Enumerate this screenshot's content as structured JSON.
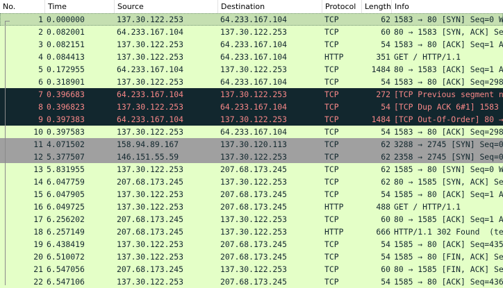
{
  "columns": {
    "no": "No.",
    "time": "Time",
    "source": "Source",
    "destination": "Destination",
    "protocol": "Protocol",
    "length": "Length",
    "info": "Info"
  },
  "colors": {
    "tcp_bg": "#e7e6ff",
    "http_bg": "#e4ffc7",
    "selected_bg": "#c5dfb1",
    "bad_bg": "#12272e",
    "bad_fg": "#f78787",
    "syn_bg": "#a0a0a0",
    "default_fg": "#12272e"
  },
  "packets": [
    {
      "no": "1",
      "time": "0.000000",
      "source": "137.30.122.253",
      "destination": "64.233.167.104",
      "protocol": "TCP",
      "length": "62",
      "info": "1583 → 80 [SYN] Seq=0 W",
      "style": "selected"
    },
    {
      "no": "2",
      "time": "0.082001",
      "source": "64.233.167.104",
      "destination": "137.30.122.253",
      "protocol": "TCP",
      "length": "60",
      "info": "80 → 1583 [SYN, ACK] Se",
      "style": "http"
    },
    {
      "no": "3",
      "time": "0.082151",
      "source": "137.30.122.253",
      "destination": "64.233.167.104",
      "protocol": "TCP",
      "length": "54",
      "info": "1583 → 80 [ACK] Seq=1 A",
      "style": "http"
    },
    {
      "no": "4",
      "time": "0.084413",
      "source": "137.30.122.253",
      "destination": "64.233.167.104",
      "protocol": "HTTP",
      "length": "351",
      "info": "GET / HTTP/1.1",
      "style": "http"
    },
    {
      "no": "5",
      "time": "0.172955",
      "source": "64.233.167.104",
      "destination": "137.30.122.253",
      "protocol": "TCP",
      "length": "1484",
      "info": "80 → 1583 [ACK] Seq=1 A",
      "style": "http"
    },
    {
      "no": "6",
      "time": "0.318901",
      "source": "137.30.122.253",
      "destination": "64.233.167.104",
      "protocol": "TCP",
      "length": "54",
      "info": "1583 → 80 [ACK] Seq=298",
      "style": "http"
    },
    {
      "no": "7",
      "time": "0.396683",
      "source": "64.233.167.104",
      "destination": "137.30.122.253",
      "protocol": "TCP",
      "length": "272",
      "info": "[TCP Previous segment n",
      "style": "bad"
    },
    {
      "no": "8",
      "time": "0.396823",
      "source": "137.30.122.253",
      "destination": "64.233.167.104",
      "protocol": "TCP",
      "length": "54",
      "info": "[TCP Dup ACK 6#1] 1583",
      "style": "bad"
    },
    {
      "no": "9",
      "time": "0.397383",
      "source": "64.233.167.104",
      "destination": "137.30.122.253",
      "protocol": "TCP",
      "length": "1484",
      "info": "[TCP Out-Of-Order] 80 →",
      "style": "bad"
    },
    {
      "no": "10",
      "time": "0.397583",
      "source": "137.30.122.253",
      "destination": "64.233.167.104",
      "protocol": "TCP",
      "length": "54",
      "info": "1583 → 80 [ACK] Seq=298",
      "style": "http"
    },
    {
      "no": "11",
      "time": "4.071502",
      "source": "158.94.89.167",
      "destination": "137.30.120.113",
      "protocol": "TCP",
      "length": "62",
      "info": "3288 → 2745 [SYN] Seq=0",
      "style": "syn"
    },
    {
      "no": "12",
      "time": "5.377507",
      "source": "146.151.55.59",
      "destination": "137.30.122.253",
      "protocol": "TCP",
      "length": "62",
      "info": "2358 → 2745 [SYN] Seq=0",
      "style": "syn"
    },
    {
      "no": "13",
      "time": "5.831955",
      "source": "137.30.122.253",
      "destination": "207.68.173.245",
      "protocol": "TCP",
      "length": "62",
      "info": "1585 → 80 [SYN] Seq=0 W",
      "style": "http"
    },
    {
      "no": "14",
      "time": "6.047759",
      "source": "207.68.173.245",
      "destination": "137.30.122.253",
      "protocol": "TCP",
      "length": "62",
      "info": "80 → 1585 [SYN, ACK] Se",
      "style": "http"
    },
    {
      "no": "15",
      "time": "6.047905",
      "source": "137.30.122.253",
      "destination": "207.68.173.245",
      "protocol": "TCP",
      "length": "54",
      "info": "1585 → 80 [ACK] Seq=1 A",
      "style": "http"
    },
    {
      "no": "16",
      "time": "6.049725",
      "source": "137.30.122.253",
      "destination": "207.68.173.245",
      "protocol": "HTTP",
      "length": "488",
      "info": "GET / HTTP/1.1",
      "style": "http"
    },
    {
      "no": "17",
      "time": "6.256202",
      "source": "207.68.173.245",
      "destination": "137.30.122.253",
      "protocol": "TCP",
      "length": "60",
      "info": "80 → 1585 [ACK] Seq=1 A",
      "style": "http"
    },
    {
      "no": "18",
      "time": "6.257149",
      "source": "207.68.173.245",
      "destination": "137.30.122.253",
      "protocol": "HTTP",
      "length": "666",
      "info": "HTTP/1.1 302 Found  (te",
      "style": "http"
    },
    {
      "no": "19",
      "time": "6.438419",
      "source": "137.30.122.253",
      "destination": "207.68.173.245",
      "protocol": "TCP",
      "length": "54",
      "info": "1585 → 80 [ACK] Seq=435",
      "style": "http"
    },
    {
      "no": "20",
      "time": "6.510072",
      "source": "137.30.122.253",
      "destination": "207.68.173.245",
      "protocol": "TCP",
      "length": "54",
      "info": "1585 → 80 [FIN, ACK] Se",
      "style": "http"
    },
    {
      "no": "21",
      "time": "6.547056",
      "source": "207.68.173.245",
      "destination": "137.30.122.253",
      "protocol": "TCP",
      "length": "60",
      "info": "80 → 1585 [FIN, ACK] Se",
      "style": "http"
    },
    {
      "no": "22",
      "time": "6.547106",
      "source": "137.30.122.253",
      "destination": "207.68.173.245",
      "protocol": "TCP",
      "length": "54",
      "info": "1585 → 80 [ACK] Seq=436",
      "style": "http"
    }
  ]
}
